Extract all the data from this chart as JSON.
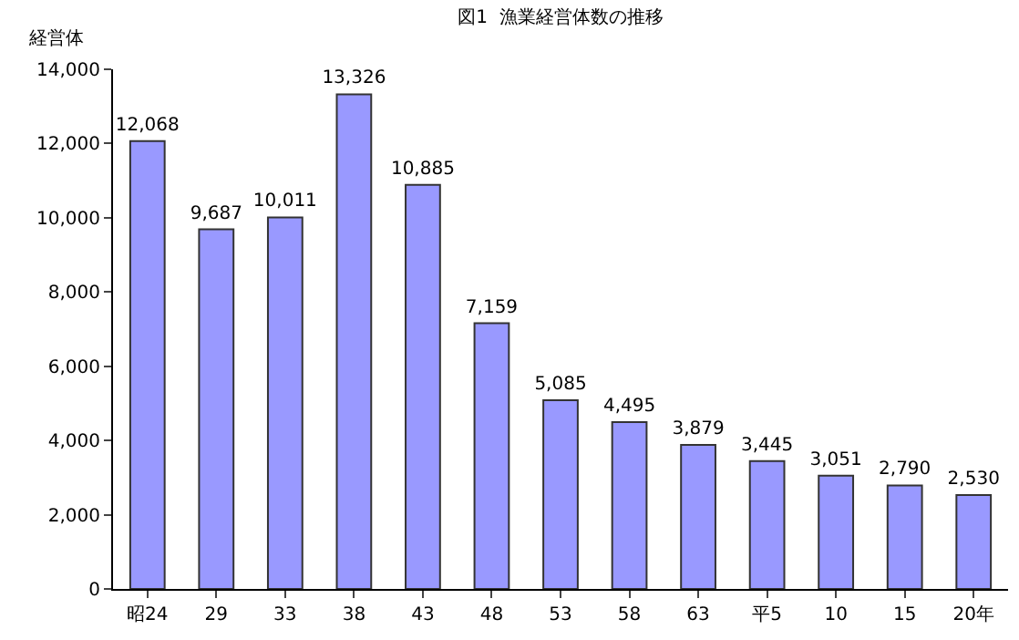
{
  "chart_data": {
    "type": "bar",
    "title": "図1  漁業経営体数の推移",
    "ylabel": "経営体",
    "categories": [
      "昭24",
      "29",
      "33",
      "38",
      "43",
      "48",
      "53",
      "58",
      "63",
      "平5",
      "10",
      "15",
      "20年"
    ],
    "values": [
      12068,
      9687,
      10011,
      13326,
      10885,
      7159,
      5085,
      4495,
      3879,
      3445,
      3051,
      2790,
      2530
    ],
    "value_labels": [
      "12,068",
      "9,687",
      "10,011",
      "13,326",
      "10,885",
      "7,159",
      "5,085",
      "4,495",
      "3,879",
      "3,445",
      "3,051",
      "2,790",
      "2,530"
    ],
    "color": "#9999ff",
    "ylim": [
      0,
      14000
    ],
    "yticks": [
      0,
      {
        "value": 2000,
        "label": "2,000"
      },
      {
        "value": 4000,
        "label": "4,000"
      },
      {
        "value": 6000,
        "label": "6,000"
      },
      {
        "value": 8000,
        "label": "8,000"
      },
      {
        "value": 10000,
        "label": "10,000"
      },
      {
        "value": 12000,
        "label": "12,000"
      },
      {
        "value": 14000,
        "label": "14,000"
      }
    ],
    "legend": false
  }
}
